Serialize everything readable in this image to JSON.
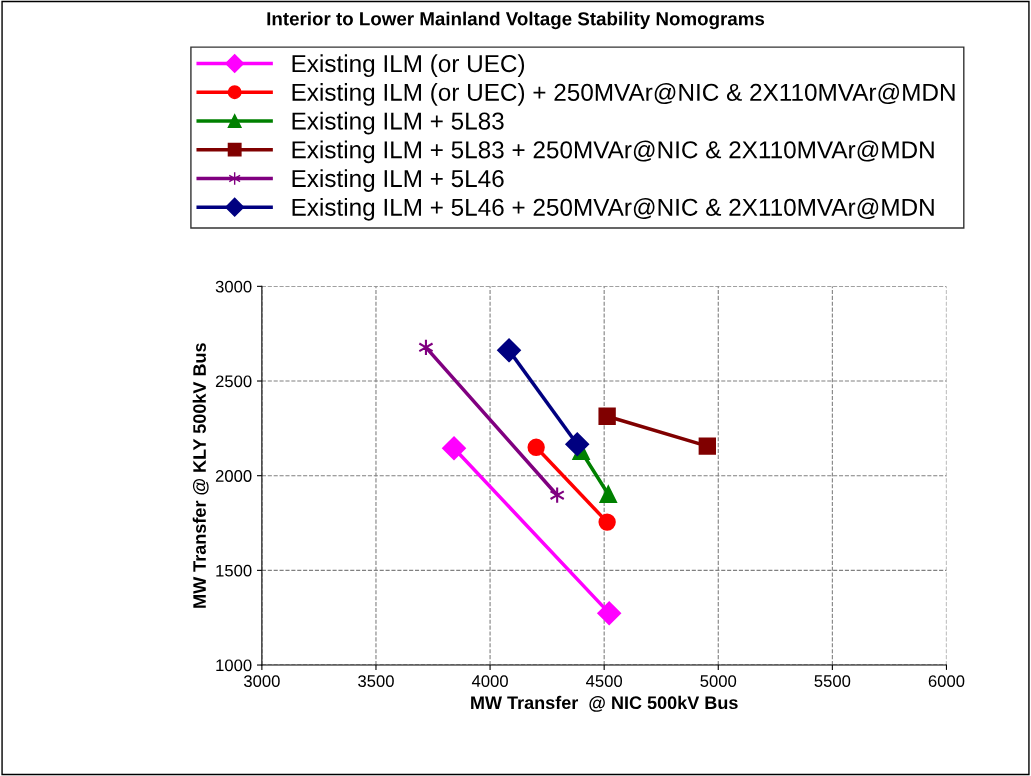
{
  "chart_data": {
    "type": "line",
    "title": "Interior to Lower Mainland Voltage Stability Nomograms",
    "xlabel": "MW Transfer  @ NIC 500kV Bus",
    "ylabel": "MW Transfer @ KLY 500kV Bus",
    "xlim": [
      3000,
      6000
    ],
    "xticks": [
      3000,
      3500,
      4000,
      4500,
      5000,
      5500,
      6000
    ],
    "ylim": [
      1000,
      3000
    ],
    "yticks": [
      1000,
      1500,
      2000,
      2500,
      3000
    ],
    "grid": true,
    "legend": "top",
    "line_style": "solid",
    "series": [
      {
        "name": "Existing ILM (or UEC)",
        "color": "#ff00ff",
        "marker": "diamond",
        "x": [
          3842,
          4522
        ],
        "values": [
          2145,
          1274
        ]
      },
      {
        "name": "Existing ILM (or UEC) + 250MVAr@NIC & 2X110MVAr@MDN",
        "color": "#ff0000",
        "marker": "circle",
        "x": [
          4202,
          4513
        ],
        "values": [
          2150,
          1755
        ]
      },
      {
        "name": "Existing ILM + 5L83",
        "color": "#008000",
        "marker": "triangle",
        "x": [
          4399,
          4518
        ],
        "values": [
          2129,
          1902
        ]
      },
      {
        "name": "Existing ILM + 5L83 + 250MVAr@NIC & 2X110MVAr@MDN",
        "color": "#800000",
        "marker": "square",
        "x": [
          4513,
          4952
        ],
        "values": [
          2314,
          2156
        ]
      },
      {
        "name": "Existing ILM + 5L46",
        "color": "#800080",
        "marker": "cross",
        "x": [
          3719,
          4294
        ],
        "values": [
          2678,
          1897
        ]
      },
      {
        "name": "Existing ILM + 5L46 + 250MVAr@NIC & 2X110MVAr@MDN",
        "color": "#000080",
        "marker": "diamond",
        "x": [
          4083,
          4382
        ],
        "values": [
          2662,
          2166
        ]
      }
    ]
  }
}
